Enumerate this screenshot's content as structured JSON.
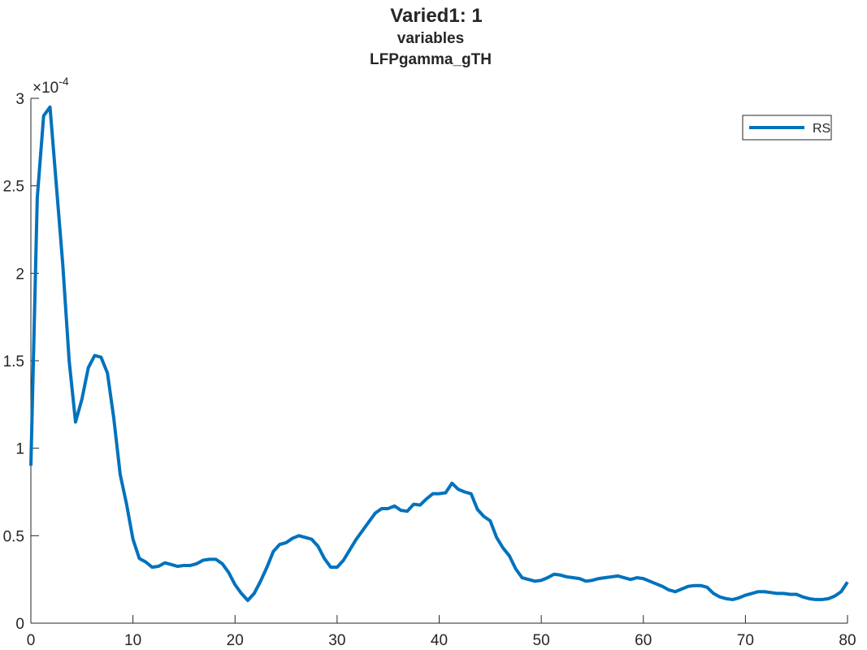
{
  "chart_data": {
    "type": "line",
    "title": "Varied1: 1",
    "subtitle": [
      "variables",
      "LFPgamma_gTH"
    ],
    "y_exponent": {
      "base": "×10",
      "power": "-4"
    },
    "x": [
      0,
      0.625,
      1.25,
      1.875,
      2.5,
      3.125,
      3.75,
      4.375,
      5,
      5.625,
      6.25,
      6.875,
      7.5,
      8.125,
      8.75,
      9.375,
      10,
      10.625,
      11.25,
      11.875,
      12.5,
      13.125,
      13.75,
      14.375,
      15,
      15.625,
      16.25,
      16.875,
      17.5,
      18.125,
      18.75,
      19.375,
      20,
      20.625,
      21.25,
      21.875,
      22.5,
      23.125,
      23.75,
      24.375,
      25,
      25.625,
      26.25,
      26.875,
      27.5,
      28.125,
      28.75,
      29.375,
      30,
      30.625,
      31.25,
      31.875,
      32.5,
      33.125,
      33.75,
      34.375,
      35,
      35.625,
      36.25,
      36.875,
      37.5,
      38.125,
      38.75,
      39.375,
      40,
      40.625,
      41.25,
      41.875,
      42.5,
      43.125,
      43.75,
      44.375,
      45,
      45.625,
      46.25,
      46.875,
      47.5,
      48.125,
      48.75,
      49.375,
      50,
      50.625,
      51.25,
      51.875,
      52.5,
      53.125,
      53.75,
      54.375,
      55,
      55.625,
      56.25,
      56.875,
      57.5,
      58.125,
      58.75,
      59.375,
      60,
      60.625,
      61.25,
      61.875,
      62.5,
      63.125,
      63.75,
      64.375,
      65,
      65.625,
      66.25,
      66.875,
      67.5,
      68.125,
      68.75,
      69.375,
      70,
      70.625,
      71.25,
      71.875,
      72.5,
      73.125,
      73.75,
      74.375,
      75,
      75.625,
      76.25,
      76.875,
      77.5,
      78.125,
      78.75,
      79.375,
      80
    ],
    "series": [
      {
        "name": "RS",
        "color": "#0072bd",
        "values": [
          0.9,
          2.43,
          2.9,
          2.95,
          2.5,
          2.05,
          1.5,
          1.15,
          1.28,
          1.46,
          1.53,
          1.52,
          1.43,
          1.17,
          0.85,
          0.68,
          0.48,
          0.37,
          0.35,
          0.32,
          0.325,
          0.345,
          0.335,
          0.325,
          0.33,
          0.33,
          0.34,
          0.36,
          0.365,
          0.365,
          0.34,
          0.29,
          0.22,
          0.17,
          0.13,
          0.17,
          0.24,
          0.32,
          0.41,
          0.45,
          0.46,
          0.485,
          0.5,
          0.49,
          0.48,
          0.44,
          0.37,
          0.32,
          0.32,
          0.36,
          0.42,
          0.48,
          0.53,
          0.58,
          0.63,
          0.655,
          0.655,
          0.67,
          0.645,
          0.64,
          0.68,
          0.675,
          0.71,
          0.74,
          0.74,
          0.745,
          0.8,
          0.765,
          0.75,
          0.74,
          0.65,
          0.61,
          0.585,
          0.49,
          0.43,
          0.385,
          0.31,
          0.26,
          0.25,
          0.24,
          0.245,
          0.26,
          0.28,
          0.275,
          0.265,
          0.26,
          0.255,
          0.24,
          0.245,
          0.255,
          0.26,
          0.265,
          0.27,
          0.26,
          0.25,
          0.26,
          0.255,
          0.24,
          0.225,
          0.21,
          0.19,
          0.18,
          0.195,
          0.21,
          0.215,
          0.215,
          0.205,
          0.17,
          0.15,
          0.14,
          0.135,
          0.145,
          0.16,
          0.17,
          0.18,
          0.18,
          0.175,
          0.17,
          0.17,
          0.165,
          0.165,
          0.15,
          0.14,
          0.135,
          0.135,
          0.14,
          0.155,
          0.18,
          0.235
        ]
      }
    ],
    "xlim": [
      0,
      80
    ],
    "xticks": [
      0,
      10,
      20,
      30,
      40,
      50,
      60,
      70,
      80
    ],
    "ylim": [
      0,
      3
    ],
    "yticks": [
      0,
      0.5,
      1,
      1.5,
      2,
      2.5,
      3
    ],
    "grid": false,
    "legend": "top-right"
  }
}
